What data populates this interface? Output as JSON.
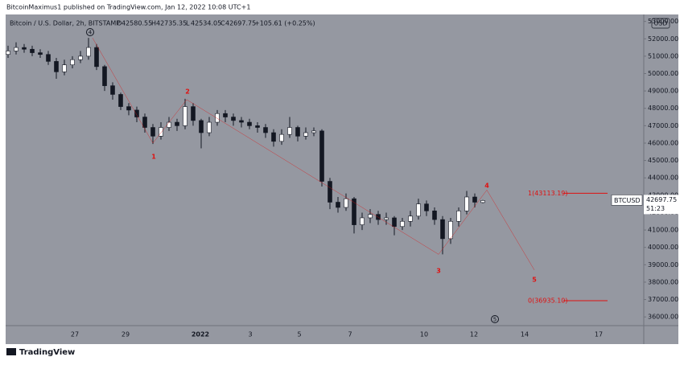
{
  "publisher": "BitcoinMaximus1 published on TradingView.com, Jan 12, 2022 10:08 UTC+1",
  "footer": "TradingView",
  "chart_data": {
    "type": "candlestick",
    "title": "Bitcoin / U.S. Dollar, 2h, BITSTAMP",
    "ohlc_labels": [
      "O",
      "H",
      "L",
      "C"
    ],
    "change": "+105.61 (+0.25%)",
    "currency": "USD",
    "symbol": "BTCUSD",
    "countdown": "51:23",
    "color": "#131722",
    "open": [
      51100,
      51300,
      51500,
      51400,
      51200,
      51100,
      50700,
      50100,
      50500,
      50800,
      51000,
      51500,
      50400,
      49300,
      48800,
      48100,
      47900,
      47500,
      46900,
      46400,
      46900,
      47200,
      47000,
      48100,
      47300,
      46600,
      47200,
      47700,
      47500,
      47300,
      47200,
      47000,
      46900,
      46600,
      46100,
      46500,
      46900,
      46400,
      46600,
      46700,
      43800,
      42600,
      42300,
      42800,
      41300,
      41700,
      41900,
      41600,
      41700,
      41200,
      41500,
      41800,
      42500,
      42100,
      41600,
      40500,
      41500,
      42100,
      42900,
      42580.55
    ],
    "high": [
      51600,
      51800,
      51700,
      51600,
      51400,
      51300,
      50900,
      50800,
      51000,
      51300,
      52050,
      51700,
      50500,
      49500,
      48900,
      48300,
      48100,
      47700,
      47100,
      47200,
      47500,
      47400,
      48550,
      48300,
      47400,
      47500,
      47900,
      47900,
      47700,
      47500,
      47400,
      47200,
      47100,
      46800,
      46800,
      47500,
      47000,
      46900,
      46900,
      46800,
      44000,
      42900,
      43100,
      42900,
      42000,
      42200,
      42100,
      42000,
      41800,
      41700,
      42100,
      42800,
      42700,
      42300,
      41800,
      41700,
      42300,
      43250,
      43100,
      42735.35
    ],
    "low": [
      50900,
      51100,
      51200,
      51000,
      50900,
      50500,
      49700,
      49900,
      50300,
      50600,
      50800,
      50200,
      49000,
      48500,
      47900,
      47600,
      47200,
      46600,
      45950,
      46200,
      46700,
      46700,
      46800,
      47000,
      45700,
      46400,
      47000,
      47200,
      47000,
      46900,
      46800,
      46600,
      46300,
      45800,
      45900,
      46300,
      46100,
      46200,
      46400,
      43500,
      42200,
      42000,
      42100,
      40800,
      41000,
      41400,
      41300,
      41300,
      40700,
      41000,
      41200,
      41600,
      41800,
      41300,
      39600,
      40200,
      41200,
      41900,
      42300,
      42534.05
    ],
    "close": [
      51300,
      51500,
      51400,
      51200,
      51100,
      50700,
      50100,
      50500,
      50800,
      51000,
      51500,
      50400,
      49300,
      48800,
      48100,
      47900,
      47500,
      46900,
      46400,
      46900,
      47200,
      47000,
      48100,
      47300,
      46600,
      47200,
      47700,
      47500,
      47300,
      47200,
      47000,
      46900,
      46600,
      46100,
      46500,
      46900,
      46400,
      46600,
      46700,
      43800,
      42600,
      42300,
      42800,
      41300,
      41700,
      41900,
      41600,
      41700,
      41200,
      41500,
      41800,
      42500,
      42100,
      41600,
      40500,
      41500,
      42100,
      42900,
      42600,
      42697.75
    ],
    "x_labels": [
      "27",
      "29",
      "2022",
      "3",
      "5",
      "7",
      "10",
      "12",
      "14",
      "17"
    ],
    "ylim": [
      35500,
      53400
    ],
    "yticks": [
      {
        "value": 36000,
        "label": "36000.00"
      },
      {
        "value": 37000,
        "label": "37000.00"
      },
      {
        "value": 38000,
        "label": "38000.00"
      },
      {
        "value": 39000,
        "label": "39000.00"
      },
      {
        "value": 40000,
        "label": "40000.00"
      },
      {
        "value": 41000,
        "label": "41000.00"
      },
      {
        "value": 42000,
        "label": "42000.00"
      },
      {
        "value": 43000,
        "label": "43000.00"
      },
      {
        "value": 44000,
        "label": "44000.00"
      },
      {
        "value": 45000,
        "label": "45000.00"
      },
      {
        "value": 46000,
        "label": "46000.00"
      },
      {
        "value": 47000,
        "label": "47000.00"
      },
      {
        "value": 48000,
        "label": "48000.00"
      },
      {
        "value": 49000,
        "label": "49000.00"
      },
      {
        "value": 50000,
        "label": "50000.00"
      },
      {
        "value": 51000,
        "label": "51000.00"
      },
      {
        "value": 52000,
        "label": "52000.00"
      },
      {
        "value": 53000,
        "label": "53000.00"
      }
    ],
    "waves": [
      {
        "label": "1",
        "value": 46000
      },
      {
        "label": "2",
        "value": 48500
      },
      {
        "label": "3",
        "value": 39600
      },
      {
        "label": "4",
        "value": 43300
      },
      {
        "label": "5",
        "value": 38700
      }
    ],
    "circled": [
      "4",
      "5"
    ],
    "fib_levels": [
      {
        "value": 43113.19,
        "label": "1(43113.19)"
      },
      {
        "value": 36935.1,
        "label": "0(36935.10)"
      }
    ],
    "annotation_color": "#e01010"
  }
}
